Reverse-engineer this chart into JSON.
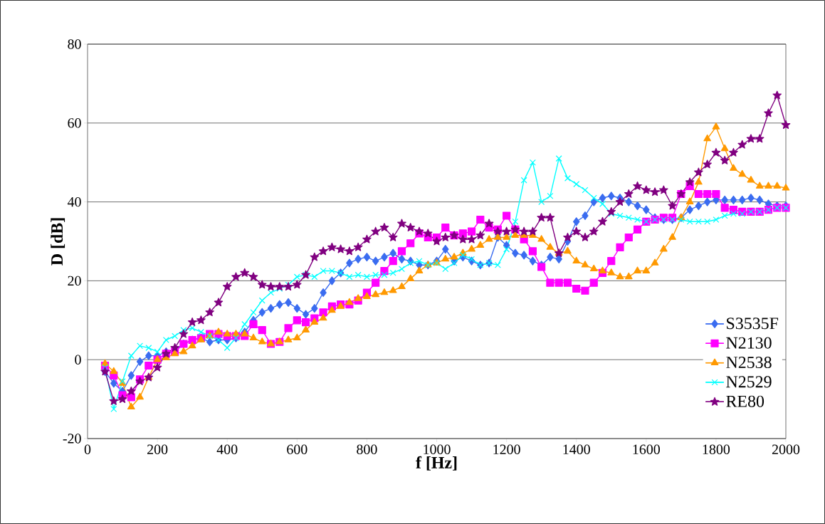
{
  "chart_data": {
    "type": "line",
    "xlabel": "f [Hz]",
    "ylabel": "D [dB]",
    "x": [
      50,
      75,
      100,
      125,
      150,
      175,
      200,
      225,
      250,
      275,
      300,
      325,
      350,
      375,
      400,
      425,
      450,
      475,
      500,
      525,
      550,
      575,
      600,
      625,
      650,
      675,
      700,
      725,
      750,
      775,
      800,
      825,
      850,
      875,
      900,
      925,
      950,
      975,
      1000,
      1025,
      1050,
      1075,
      1100,
      1125,
      1150,
      1175,
      1200,
      1225,
      1250,
      1275,
      1300,
      1325,
      1350,
      1375,
      1400,
      1425,
      1450,
      1475,
      1500,
      1525,
      1550,
      1575,
      1600,
      1625,
      1650,
      1675,
      1700,
      1725,
      1750,
      1775,
      1800,
      1825,
      1850,
      1875,
      1900,
      1925,
      1950,
      1975,
      2000
    ],
    "xlim": [
      0,
      2000
    ],
    "ylim": [
      -20,
      80
    ],
    "xticks": [
      0,
      200,
      400,
      600,
      800,
      1000,
      1200,
      1400,
      1600,
      1800,
      2000
    ],
    "yticks": [
      -20,
      0,
      20,
      40,
      60,
      80
    ],
    "grid": "y",
    "legend": "right",
    "line_style": "solid",
    "series": [
      {
        "name": "S3535F",
        "color": "#3a6cf0",
        "marker": "diamond",
        "values": [
          -3,
          -6,
          -8,
          -4,
          -0.5,
          1,
          1,
          2,
          2.5,
          4,
          5,
          5.5,
          4.5,
          5,
          5,
          5.5,
          7,
          10,
          12,
          13,
          14,
          14.5,
          13,
          11.5,
          13,
          17,
          20,
          22,
          24.5,
          25.5,
          26,
          25,
          26,
          27,
          25.5,
          25,
          24,
          24,
          25,
          28,
          25,
          26,
          25,
          24,
          24.5,
          31,
          29,
          27,
          26.5,
          25,
          24,
          26,
          25.5,
          30,
          35,
          36.5,
          40,
          41,
          41.5,
          41,
          40,
          39,
          38,
          36,
          35.5,
          35.5,
          36,
          38,
          39,
          40,
          40.5,
          40.5,
          40.5,
          40.5,
          41,
          40.5,
          39.5,
          39,
          39
        ]
      },
      {
        "name": "N2130",
        "color": "#ff00ff",
        "marker": "square",
        "values": [
          -1.5,
          -4,
          -9,
          -9.5,
          -5,
          -1.5,
          0,
          1.5,
          2,
          4,
          5,
          5.5,
          6.5,
          6.5,
          6,
          6,
          6,
          9,
          7.5,
          4,
          4.5,
          8,
          10,
          9.5,
          10.5,
          12,
          13.5,
          14,
          14,
          15,
          17,
          19.5,
          22.5,
          25,
          27.5,
          29.5,
          32,
          31,
          31,
          33.5,
          31.5,
          32,
          32.5,
          35.5,
          33.5,
          33,
          36.5,
          33,
          30.5,
          27.5,
          23.5,
          19.5,
          19.5,
          19.5,
          18,
          17.5,
          19.5,
          22,
          25,
          28.5,
          31,
          33,
          35,
          35.5,
          36,
          36,
          42,
          44,
          42,
          42,
          42,
          38.5,
          38,
          37.5,
          37.5,
          37.5,
          38,
          38.5,
          38.5
        ]
      },
      {
        "name": "N2538",
        "color": "#ff9900",
        "marker": "triangle",
        "values": [
          -1,
          -3,
          -6,
          -12,
          -9.5,
          -4.5,
          0,
          0.5,
          1.5,
          2,
          3.5,
          5,
          6,
          7,
          6.5,
          6.5,
          6.5,
          5.5,
          4.5,
          4,
          4.5,
          5,
          5.5,
          7.5,
          9.5,
          10.5,
          12.5,
          13.5,
          14.5,
          15.5,
          16,
          16.5,
          17,
          17.5,
          18.5,
          20.5,
          22.5,
          24,
          24.5,
          25.5,
          26,
          27,
          28,
          29,
          30.5,
          31,
          31,
          31.5,
          31.5,
          31.5,
          30.5,
          28.5,
          27,
          27.5,
          25,
          24,
          23,
          22.5,
          22,
          21,
          21,
          22.5,
          22.5,
          24.5,
          28,
          31,
          36,
          40,
          45,
          56,
          59,
          53.5,
          48.5,
          47,
          45.5,
          44,
          44,
          44,
          43.5
        ]
      },
      {
        "name": "N2529",
        "color": "#00ffff",
        "marker": "cross",
        "values": [
          -2,
          -12.5,
          -5.5,
          1,
          3.5,
          3,
          2,
          5,
          6,
          7.5,
          8,
          7,
          6,
          5,
          3,
          5.5,
          9,
          12,
          15,
          17,
          18,
          19,
          21,
          21.5,
          21,
          22.5,
          22.5,
          22,
          21,
          21.5,
          21,
          21.5,
          21.5,
          22,
          23,
          24.5,
          25,
          24,
          24.5,
          23,
          24.5,
          26.5,
          25.5,
          24,
          24.5,
          24,
          28,
          35,
          45.5,
          50,
          40,
          41.5,
          51,
          46,
          44.5,
          43,
          41,
          39.5,
          37,
          36.5,
          36,
          35.5,
          35,
          35.5,
          35.5,
          35.5,
          35.5,
          35,
          35,
          35,
          35.5,
          36.5,
          37,
          37,
          37.5,
          37.5,
          38,
          38.5,
          38.5
        ]
      },
      {
        "name": "RE80",
        "color": "#800080",
        "marker": "star",
        "values": [
          -3,
          -10.5,
          -10,
          -8,
          -5.5,
          -4.5,
          -2,
          1.5,
          3,
          6.5,
          9.5,
          10,
          12,
          14.5,
          18.5,
          21,
          22,
          21,
          19,
          18.5,
          18.5,
          18.5,
          19,
          21.5,
          26,
          27.5,
          28.5,
          28,
          27.5,
          28.5,
          30.5,
          32.5,
          33.5,
          31,
          34.5,
          33.5,
          32.5,
          32,
          30,
          31,
          31.5,
          30.5,
          30.5,
          31.5,
          34.5,
          32.5,
          32.5,
          33,
          32.5,
          32.5,
          36,
          36,
          27,
          31,
          32.5,
          31,
          32.5,
          35,
          37.5,
          40,
          42,
          44,
          43,
          42.5,
          43,
          39,
          42,
          45,
          47.5,
          49.5,
          52.5,
          50.5,
          52.5,
          54.5,
          56,
          56,
          62.5,
          67,
          59.5
        ]
      }
    ]
  }
}
